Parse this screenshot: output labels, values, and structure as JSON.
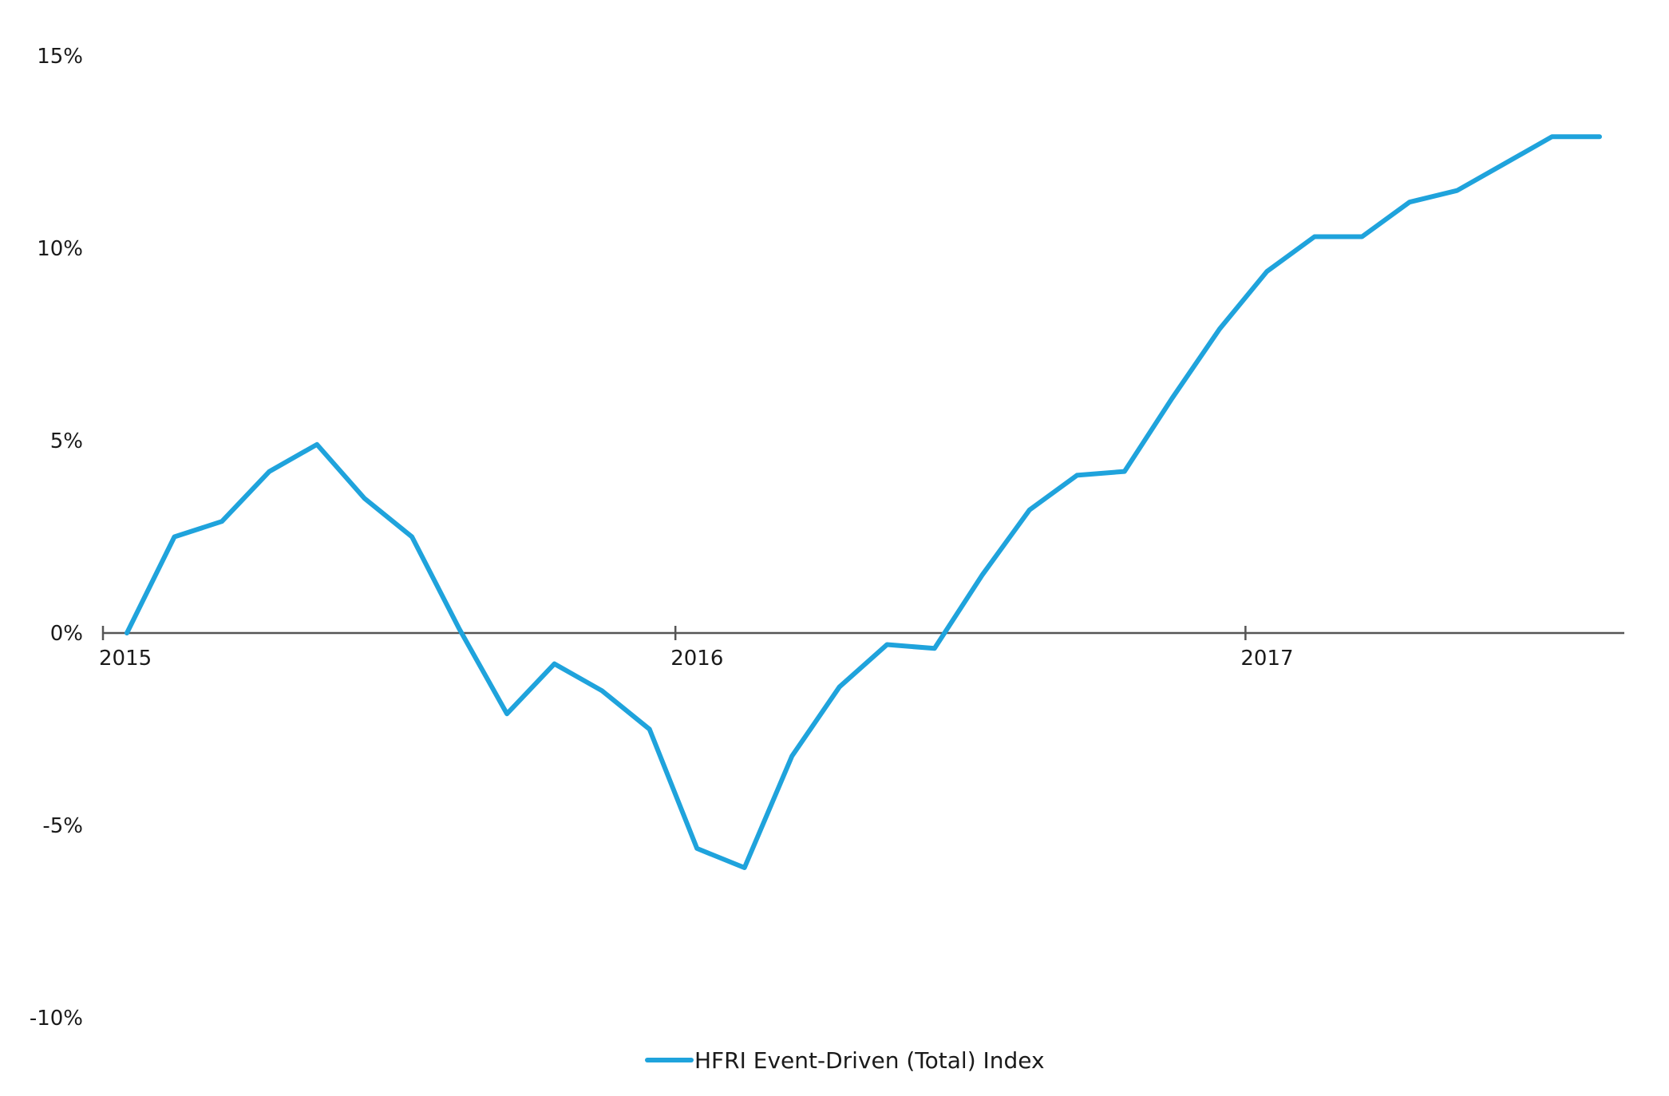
{
  "chart_data": {
    "type": "line",
    "title": "",
    "xlabel": "",
    "ylabel": "",
    "x_start": "2015-01",
    "x_end": "2017-08",
    "x_ticks": [
      {
        "label": "2015",
        "date": "2015-01"
      },
      {
        "label": "2016",
        "date": "2016-01"
      },
      {
        "label": "2017",
        "date": "2017-01"
      }
    ],
    "ylim": [
      -10,
      15
    ],
    "y_ticks": [
      {
        "value": 15,
        "label": "15%"
      },
      {
        "value": 10,
        "label": "10%"
      },
      {
        "value": 5,
        "label": "5%"
      },
      {
        "value": 0,
        "label": "0%"
      },
      {
        "value": -5,
        "label": "-5%"
      },
      {
        "value": -10,
        "label": "-10%"
      }
    ],
    "grid": false,
    "legend_position": "bottom-center",
    "series": [
      {
        "name": "HFRI Event-Driven (Total) Index",
        "color": "#1fa3dc",
        "points": [
          {
            "x": "2015-01",
            "y": 0.0
          },
          {
            "x": "2015-02",
            "y": 2.5
          },
          {
            "x": "2015-03",
            "y": 2.9
          },
          {
            "x": "2015-04",
            "y": 4.2
          },
          {
            "x": "2015-05",
            "y": 4.9
          },
          {
            "x": "2015-06",
            "y": 3.5
          },
          {
            "x": "2015-07",
            "y": 2.5
          },
          {
            "x": "2015-08",
            "y": 0.1
          },
          {
            "x": "2015-09",
            "y": -2.1
          },
          {
            "x": "2015-10",
            "y": -0.8
          },
          {
            "x": "2015-11",
            "y": -1.5
          },
          {
            "x": "2015-12",
            "y": -2.5
          },
          {
            "x": "2016-01",
            "y": -5.6
          },
          {
            "x": "2016-02",
            "y": -6.1
          },
          {
            "x": "2016-03",
            "y": -3.2
          },
          {
            "x": "2016-04",
            "y": -1.4
          },
          {
            "x": "2016-05",
            "y": -0.3
          },
          {
            "x": "2016-06",
            "y": -0.4
          },
          {
            "x": "2016-07",
            "y": 1.5
          },
          {
            "x": "2016-08",
            "y": 3.2
          },
          {
            "x": "2016-09",
            "y": 4.1
          },
          {
            "x": "2016-10",
            "y": 4.2
          },
          {
            "x": "2016-11",
            "y": 6.1
          },
          {
            "x": "2016-12",
            "y": 7.9
          },
          {
            "x": "2017-01",
            "y": 9.4
          },
          {
            "x": "2017-02",
            "y": 10.3
          },
          {
            "x": "2017-03",
            "y": 10.3
          },
          {
            "x": "2017-04",
            "y": 11.2
          },
          {
            "x": "2017-05",
            "y": 11.5
          },
          {
            "x": "2017-06",
            "y": 12.2
          },
          {
            "x": "2017-07",
            "y": 12.9
          },
          {
            "x": "2017-08",
            "y": 12.9
          }
        ]
      }
    ]
  }
}
